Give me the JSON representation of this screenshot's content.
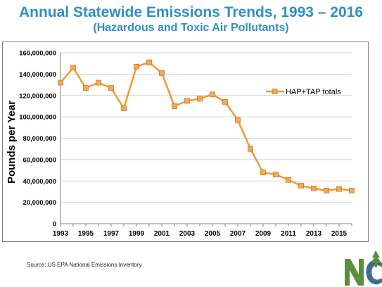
{
  "header": {
    "title": "Annual Statewide Emissions Trends, 1993 – 2016",
    "subtitle": "(Hazardous and Toxic Air Pollutants)"
  },
  "footer": {
    "source": "Source: US EPA National Emissions Inventory"
  },
  "colors": {
    "title": "#2f8fc4",
    "series_line": "#ed9b33",
    "series_marker_fill": "#f5a94f",
    "series_marker_stroke": "#c97a22",
    "logo_green": "#5b8f3c",
    "logo_blue": "#3d6f8e"
  },
  "chart_data": {
    "type": "line",
    "title": "Annual Statewide Emissions Trends, 1993 – 2016",
    "subtitle": "(Hazardous and Toxic Air Pollutants)",
    "xlabel": "",
    "ylabel": "Pounds per Year",
    "xlim": [
      1993,
      2016
    ],
    "ylim": [
      0,
      160000000
    ],
    "x_ticks": [
      1993,
      1995,
      1997,
      1999,
      2001,
      2003,
      2005,
      2007,
      2009,
      2011,
      2013,
      2015
    ],
    "x_tick_labels": [
      "1993",
      "1995",
      "1997",
      "1999",
      "2001",
      "2003",
      "2005",
      "2007",
      "2009",
      "2011",
      "2013",
      "2015"
    ],
    "y_ticks": [
      0,
      20000000,
      40000000,
      60000000,
      80000000,
      100000000,
      120000000,
      140000000,
      160000000
    ],
    "y_tick_labels": [
      "0",
      "20,000,000",
      "40,000,000",
      "60,000,000",
      "80,000,000",
      "100,000,000",
      "120,000,000",
      "140,000,000",
      "160,000,000"
    ],
    "grid": "horizontal",
    "legend_position": "right",
    "series": [
      {
        "name": "HAP+TAP totals",
        "x": [
          1993,
          1994,
          1995,
          1996,
          1997,
          1998,
          1999,
          2000,
          2001,
          2002,
          2003,
          2004,
          2005,
          2006,
          2007,
          2008,
          2009,
          2010,
          2011,
          2012,
          2013,
          2014,
          2015,
          2016
        ],
        "values": [
          132000000,
          146000000,
          127000000,
          132000000,
          127000000,
          108000000,
          147000000,
          151000000,
          141000000,
          110000000,
          115000000,
          117000000,
          121000000,
          114000000,
          97000000,
          70000000,
          48000000,
          46000000,
          41000000,
          35500000,
          33000000,
          31000000,
          32500000,
          31000000
        ]
      }
    ]
  }
}
